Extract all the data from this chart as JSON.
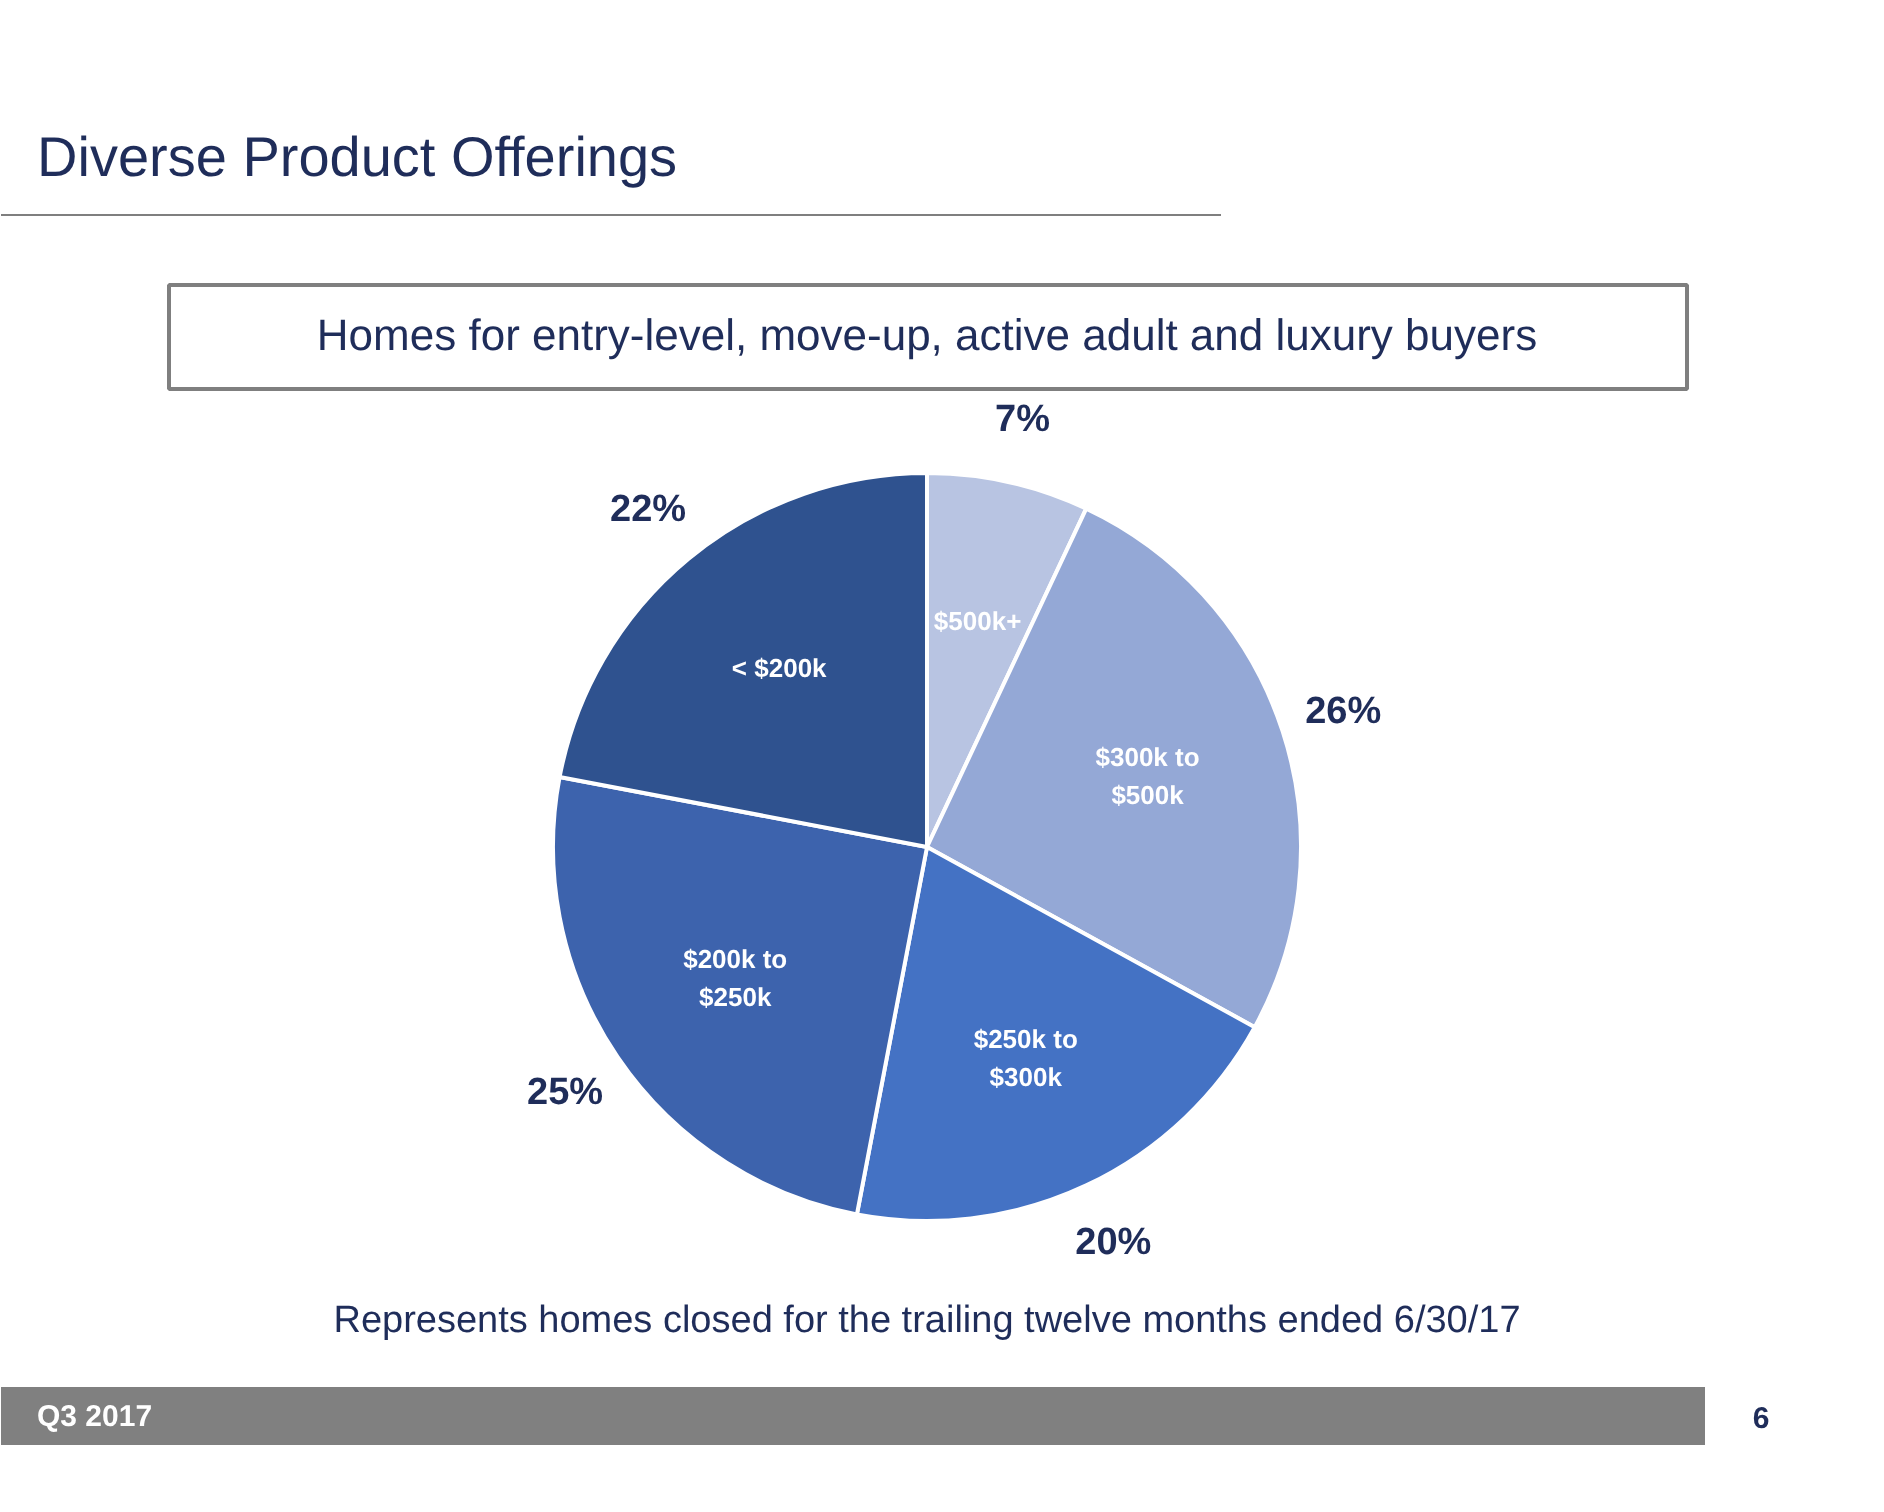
{
  "chart_data": {
    "type": "pie",
    "title": "Diverse Product Offerings",
    "subtitle": "Homes for entry-level, move-up, active adult and luxury buyers",
    "categories": [
      "$500k+",
      "$300k to $500k",
      "$250k to $300k",
      "$200k to $250k",
      "< $200k"
    ],
    "values": [
      7,
      26,
      20,
      25,
      22
    ],
    "colors": [
      "#b8c4e2",
      "#94a8d6",
      "#4472c4",
      "#3d63ad",
      "#2f528f"
    ],
    "value_labels": [
      "7%",
      "26%",
      "20%",
      "25%",
      "22%"
    ],
    "annotations": [
      "Represents homes closed for the trailing twelve months ended 6/30/17",
      "Q3 2017",
      "6"
    ]
  }
}
